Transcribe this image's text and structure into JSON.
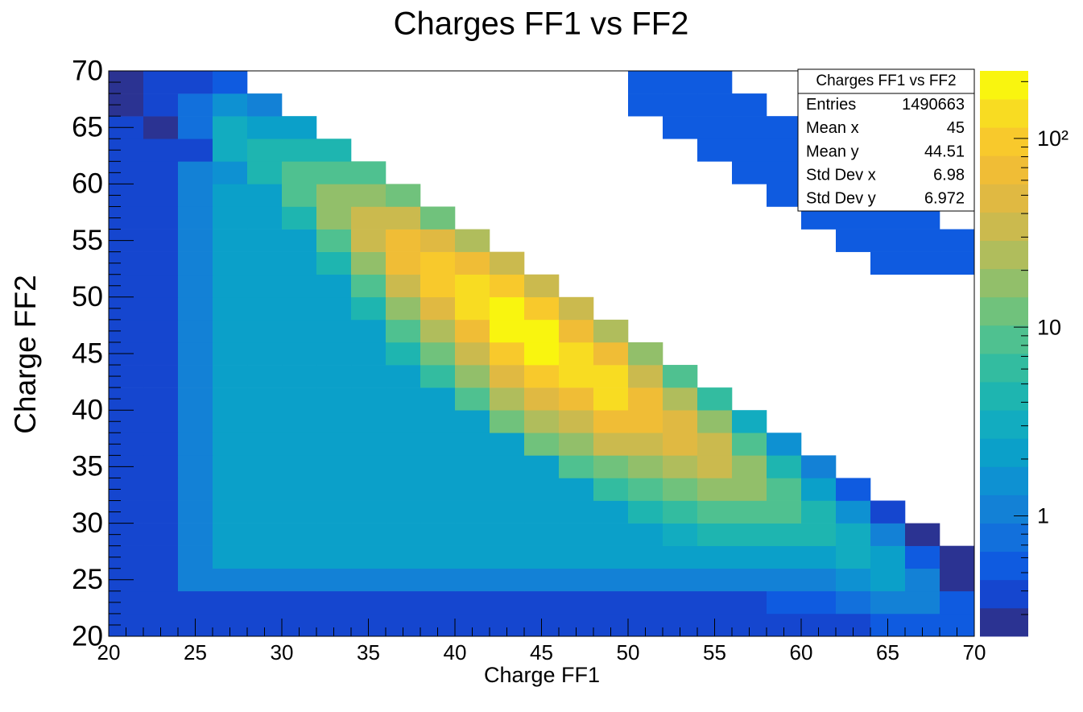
{
  "chart_data": {
    "type": "heatmap",
    "title": "Charges FF1 vs FF2",
    "x_label": "Charge FF1",
    "y_label": "Charge FF2",
    "xlim": [
      20,
      70
    ],
    "ylim": [
      20,
      70
    ],
    "xticks": [
      20,
      25,
      30,
      35,
      40,
      45,
      50,
      55,
      60,
      65,
      70
    ],
    "yticks": [
      20,
      25,
      30,
      35,
      40,
      45,
      50,
      55,
      60,
      65,
      70
    ],
    "xbins": [
      20,
      22,
      24,
      26,
      28,
      30,
      32,
      34,
      36,
      38,
      40,
      42,
      44,
      46,
      48,
      50,
      52,
      54,
      56,
      58,
      60,
      62,
      64,
      66,
      68,
      70
    ],
    "ybins": [
      20,
      22,
      24,
      26,
      28,
      30,
      32,
      34,
      36,
      38,
      40,
      42,
      44,
      46,
      48,
      50,
      52,
      54,
      56,
      58,
      60,
      62,
      64,
      66,
      68,
      70
    ],
    "z": [
      [
        0.4,
        0.4,
        0.4,
        0.4,
        0.4,
        0.4,
        0.4,
        0.4,
        0.4,
        0.4,
        0.4,
        0.4,
        0.4,
        0.4,
        0.4,
        0.4,
        0.4,
        0.4,
        0.4,
        0.4,
        0.4,
        0.4,
        0.5,
        0.5,
        0.5
      ],
      [
        0.4,
        0.4,
        0.4,
        0.4,
        0.4,
        0.4,
        0.4,
        0.4,
        0.4,
        0.4,
        0.4,
        0.4,
        0.4,
        0.4,
        0.4,
        0.4,
        0.4,
        0.4,
        0.4,
        0.5,
        0.6,
        0.8,
        1,
        1,
        0.5
      ],
      [
        0.4,
        0.4,
        1,
        1,
        1,
        1,
        1,
        1,
        1,
        1,
        1,
        1,
        1,
        1,
        1,
        1,
        1,
        1,
        1,
        1,
        1.2,
        1.5,
        2,
        1,
        0.3
      ],
      [
        0.4,
        0.4,
        1,
        2,
        2,
        2,
        2,
        2,
        2,
        2,
        2,
        2,
        2,
        2,
        2,
        2,
        2,
        2,
        2,
        2,
        2.5,
        3,
        2,
        0.5,
        0.3
      ],
      [
        0.4,
        0.4,
        1,
        2,
        2,
        2,
        2,
        2,
        2,
        2,
        2,
        2,
        2,
        2,
        2,
        2,
        3,
        4,
        4,
        4,
        5,
        3,
        1,
        0.3,
        null
      ],
      [
        0.4,
        0.4,
        1,
        2,
        2,
        2,
        2,
        2,
        2,
        2,
        2,
        2,
        2,
        2,
        2,
        5,
        6,
        8,
        8,
        8,
        5,
        1.5,
        0.4,
        null,
        null
      ],
      [
        0.4,
        0.4,
        1,
        2,
        2,
        2,
        2,
        2,
        2,
        2,
        2,
        2,
        2,
        2,
        7,
        10,
        12,
        15,
        15,
        8,
        2.5,
        0.6,
        null,
        null,
        null
      ],
      [
        0.4,
        0.4,
        1,
        2,
        2,
        2,
        2,
        2,
        2,
        2,
        2,
        2,
        2,
        9,
        14,
        20,
        25,
        30,
        15,
        4,
        1,
        null,
        null,
        null,
        null
      ],
      [
        0.4,
        0.4,
        1,
        2,
        2,
        2,
        2,
        2,
        2,
        2,
        2,
        2,
        11,
        18,
        30,
        40,
        50,
        30,
        8,
        1.6,
        null,
        null,
        null,
        null,
        null
      ],
      [
        0.4,
        0.4,
        1,
        2,
        2,
        2,
        2,
        2,
        2,
        2,
        2,
        11,
        22,
        38,
        60,
        80,
        50,
        15,
        3,
        null,
        null,
        null,
        null,
        null,
        null
      ],
      [
        0.4,
        0.4,
        1,
        2,
        2,
        2,
        2,
        2,
        2,
        2,
        9,
        22,
        45,
        75,
        120,
        80,
        25,
        6,
        null,
        null,
        null,
        null,
        null,
        null,
        null
      ],
      [
        0.4,
        0.4,
        1,
        2,
        2,
        2,
        2,
        2,
        2,
        7,
        18,
        45,
        90,
        150,
        120,
        40,
        10,
        null,
        null,
        null,
        null,
        null,
        null,
        null,
        null
      ],
      [
        0.4,
        0.4,
        1,
        2,
        2,
        2,
        2,
        2,
        4,
        13,
        38,
        90,
        180,
        150,
        60,
        16,
        null,
        null,
        null,
        null,
        null,
        null,
        null,
        null,
        null
      ],
      [
        0.4,
        0.4,
        1,
        2,
        2,
        2,
        2,
        2.4,
        8,
        28,
        75,
        180,
        180,
        75,
        24,
        null,
        null,
        null,
        null,
        null,
        null,
        null,
        null,
        null,
        null
      ],
      [
        0.4,
        0.4,
        1,
        2,
        2,
        2,
        2,
        5,
        18,
        55,
        150,
        180,
        90,
        30,
        null,
        null,
        null,
        null,
        null,
        null,
        null,
        null,
        null,
        null,
        null
      ],
      [
        0.4,
        0.4,
        1,
        2,
        2,
        2,
        2.4,
        10,
        35,
        110,
        150,
        90,
        36,
        null,
        null,
        null,
        null,
        null,
        null,
        null,
        null,
        null,
        null,
        null,
        null
      ],
      [
        0.4,
        0.4,
        1,
        2,
        2,
        2,
        5,
        20,
        70,
        110,
        75,
        30,
        null,
        null,
        null,
        null,
        null,
        null,
        null,
        null,
        null,
        null,
        0.5,
        0.5,
        0.5
      ],
      [
        0.4,
        0.4,
        1,
        2,
        2,
        2.5,
        10,
        40,
        70,
        55,
        22,
        null,
        null,
        null,
        null,
        null,
        null,
        null,
        null,
        null,
        null,
        0.5,
        0.5,
        0.5,
        0.5
      ],
      [
        0.4,
        0.4,
        1,
        2,
        2,
        5,
        20,
        40,
        35,
        14,
        null,
        null,
        null,
        null,
        null,
        null,
        null,
        null,
        null,
        null,
        0.5,
        0.5,
        0.5,
        0.5,
        null
      ],
      [
        0.4,
        0.4,
        1,
        2,
        2.5,
        10,
        20,
        20,
        14,
        null,
        null,
        null,
        null,
        null,
        null,
        null,
        null,
        null,
        null,
        0.5,
        0.5,
        0.5,
        0.5,
        null,
        null
      ],
      [
        0.4,
        0.4,
        1,
        1.5,
        5,
        10,
        10,
        8,
        null,
        null,
        null,
        null,
        null,
        null,
        null,
        null,
        null,
        null,
        0.5,
        0.5,
        0.5,
        0.5,
        null,
        null,
        null
      ],
      [
        0.4,
        0.4,
        0.4,
        3,
        5,
        5,
        4,
        null,
        null,
        null,
        null,
        null,
        null,
        null,
        null,
        null,
        null,
        0.5,
        0.5,
        0.5,
        0.5,
        null,
        null,
        null,
        null
      ],
      [
        0.4,
        0.3,
        0.8,
        3,
        2.5,
        2,
        null,
        null,
        null,
        null,
        null,
        null,
        null,
        null,
        null,
        null,
        0.5,
        0.5,
        0.5,
        0.5,
        null,
        null,
        null,
        null,
        null
      ],
      [
        0.3,
        0.4,
        0.8,
        1.5,
        1,
        null,
        null,
        null,
        null,
        null,
        null,
        null,
        null,
        null,
        null,
        0.5,
        0.5,
        0.5,
        0.5,
        null,
        null,
        null,
        null,
        null,
        null
      ],
      [
        0.3,
        0.4,
        0.4,
        0.6,
        null,
        null,
        null,
        null,
        null,
        null,
        null,
        null,
        null,
        null,
        null,
        0.5,
        0.5,
        0.5,
        null,
        null,
        null,
        null,
        null,
        null,
        null
      ]
    ],
    "zlim": [
      0.23,
      228
    ],
    "zlog": true,
    "zticks": [
      {
        "value": 1,
        "label": "1"
      },
      {
        "value": 10,
        "label": "10"
      },
      {
        "value": 100,
        "label": "10²"
      }
    ],
    "palette": [
      "#2b3392",
      "#1546cf",
      "#0f5be0",
      "#1270dc",
      "#1381d6",
      "#0e91d2",
      "#0ba0c9",
      "#12acc0",
      "#1eb5b0",
      "#33bca0",
      "#4fc190",
      "#70c27c",
      "#92bf6a",
      "#b0bd5c",
      "#cbba4e",
      "#e0b942",
      "#f0bd36",
      "#f8c92c",
      "#f8dc22",
      "#f9f50f"
    ],
    "stats": {
      "title": "Charges FF1 vs FF2",
      "rows": [
        {
          "label": "Entries",
          "value": 1490663
        },
        {
          "label": "Mean x",
          "value": 45
        },
        {
          "label": "Mean y",
          "value": 44.51
        },
        {
          "label": "Std Dev x",
          "value": 6.98
        },
        {
          "label": "Std Dev y",
          "value": 6.972
        }
      ]
    }
  }
}
